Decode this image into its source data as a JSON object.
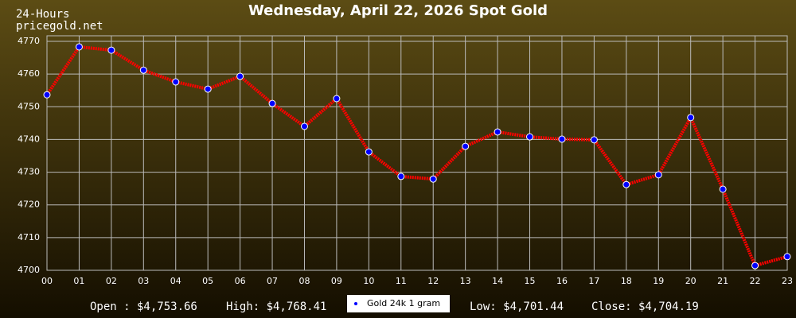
{
  "header": {
    "period": "24-Hours",
    "site": "pricegold.net"
  },
  "chart_data": {
    "type": "line",
    "title": "Wednesday, April 22, 2026 Spot Gold",
    "categories": [
      "00",
      "01",
      "02",
      "03",
      "04",
      "05",
      "06",
      "07",
      "08",
      "09",
      "10",
      "11",
      "12",
      "13",
      "14",
      "15",
      "16",
      "17",
      "18",
      "19",
      "20",
      "21",
      "22",
      "23"
    ],
    "series": [
      {
        "name": "Gold 24k 1 gram",
        "color": "#ff0000",
        "marker_color": "#0000ff",
        "values": [
          4753.66,
          4768.3,
          4767.3,
          4761.2,
          4757.6,
          4755.4,
          4759.3,
          4751.0,
          4744.0,
          4752.5,
          4736.2,
          4728.7,
          4727.9,
          4737.9,
          4742.3,
          4740.8,
          4740.1,
          4739.9,
          4726.2,
          4729.2,
          4746.7,
          4724.8,
          4701.44,
          4704.19
        ]
      }
    ],
    "ylim": [
      4700,
      4770
    ],
    "yticks": [
      4700,
      4710,
      4720,
      4730,
      4740,
      4750,
      4760,
      4770
    ],
    "grid": true
  },
  "footer": {
    "open": "Open : $4,753.66",
    "high": "High: $4,768.41",
    "low": "Low: $4,701.44",
    "close": "Close: $4,704.19"
  }
}
